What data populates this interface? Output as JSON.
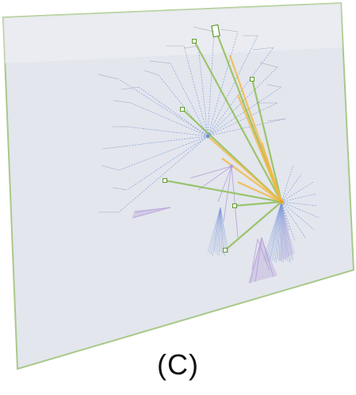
{
  "figure": {
    "caption": "(C)",
    "colors": {
      "panel_fill": "#e3e6ed",
      "panel_edge": "#a9c98a",
      "tree_edge": "#6f8fd6",
      "purple_edge": "#b39ad6",
      "green_link": "#8fbf57",
      "orange_link": "#f3b73f"
    }
  }
}
